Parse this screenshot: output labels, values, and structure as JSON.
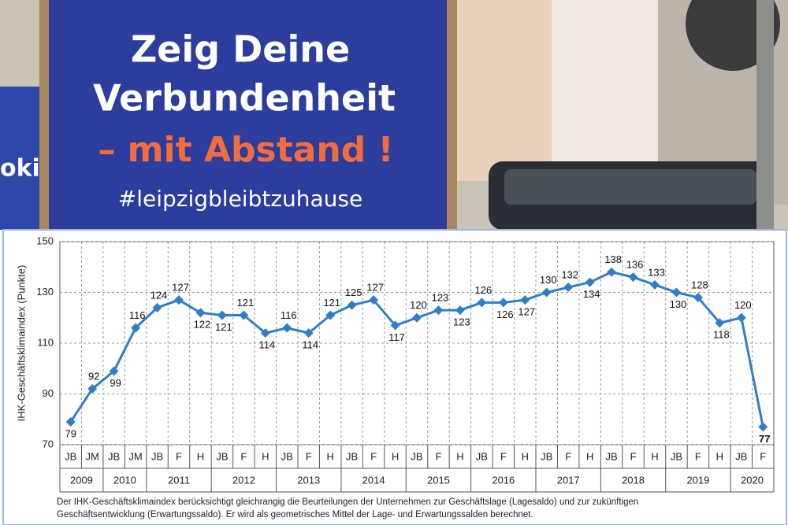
{
  "poster": {
    "lines": [
      "Zeig Deine",
      "Verbundenheit",
      "– mit Abstand !",
      "#leipzigbleibtzuhause"
    ],
    "side": "oki"
  },
  "chart_data": {
    "type": "line",
    "y_label": "IHK-Geschäftsklimaindex (Punkte)",
    "categories": [
      "JB",
      "JM",
      "JB",
      "JM",
      "JB",
      "F",
      "H",
      "JB",
      "F",
      "H",
      "JB",
      "F",
      "H",
      "JB",
      "F",
      "H",
      "JB",
      "F",
      "H",
      "JB",
      "F",
      "H",
      "JB",
      "F",
      "H",
      "JB",
      "F",
      "H",
      "JB",
      "F",
      "H",
      "JB",
      "F"
    ],
    "groups": [
      {
        "name": "2009",
        "size": 2
      },
      {
        "name": "2010",
        "size": 2
      },
      {
        "name": "2011",
        "size": 3
      },
      {
        "name": "2012",
        "size": 3
      },
      {
        "name": "2013",
        "size": 3
      },
      {
        "name": "2014",
        "size": 3
      },
      {
        "name": "2015",
        "size": 3
      },
      {
        "name": "2016",
        "size": 3
      },
      {
        "name": "2017",
        "size": 3
      },
      {
        "name": "2018",
        "size": 3
      },
      {
        "name": "2019",
        "size": 3
      },
      {
        "name": "2020",
        "size": 2
      }
    ],
    "values": [
      79,
      92,
      99,
      116,
      124,
      127,
      122,
      121,
      121,
      114,
      116,
      114,
      121,
      125,
      127,
      117,
      120,
      123,
      123,
      126,
      126,
      127,
      130,
      132,
      134,
      138,
      136,
      133,
      130,
      128,
      118,
      120,
      77
    ],
    "color": "#2f7ec9",
    "ylim": [
      70,
      150
    ],
    "yticks": [
      70,
      90,
      110,
      130,
      150
    ],
    "grid": true,
    "note": [
      "Der IHK-Geschäftsklimaindex berücksichtigt gleichrangig die Beurteilungen der Unternehmen zur Geschäftslage (Lagesaldo) und zur zukünftigen",
      "Geschäftsentwicklung (Erwartungssaldo). Er wird als geometrisches Mittel der Lage- und Erwartungssalden berechnet."
    ]
  }
}
